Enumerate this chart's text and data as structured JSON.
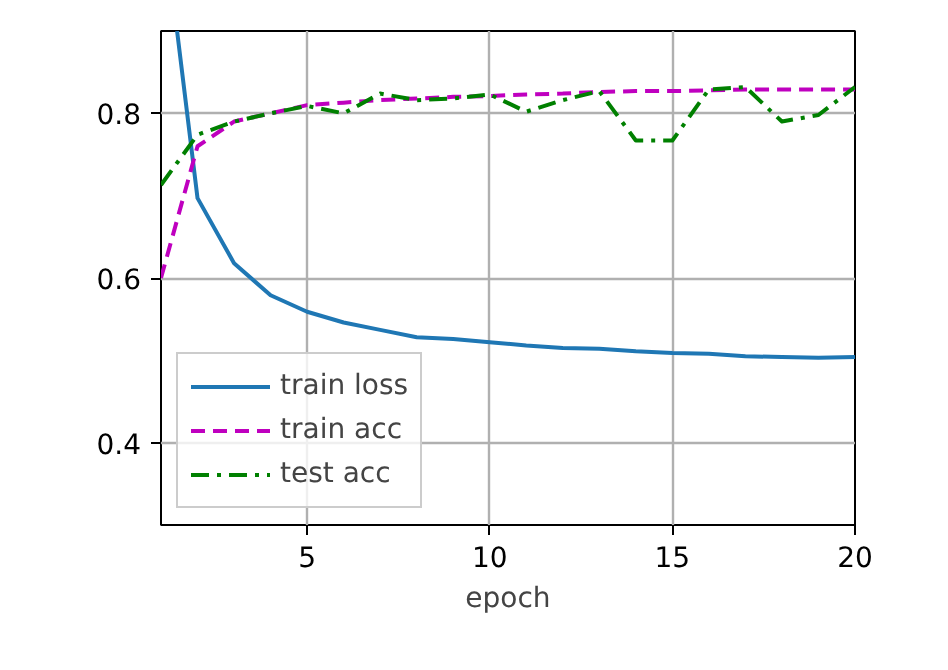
{
  "chart_data": {
    "type": "line",
    "xlabel": "epoch",
    "xlim": [
      1,
      20
    ],
    "ylim": [
      0.3,
      0.9
    ],
    "xticks": [
      5,
      10,
      15,
      20
    ],
    "yticks": [
      0.4,
      0.6,
      0.8
    ],
    "grid": true,
    "legend": "bottom left",
    "series": [
      {
        "name": "train loss",
        "color": "#1f77b4",
        "line_style": "solid",
        "x": [
          1.44,
          2,
          3,
          4,
          5,
          6,
          7,
          8,
          9,
          10,
          11,
          12,
          13,
          14,
          15,
          16,
          17,
          18,
          19,
          20
        ],
        "values": [
          0.9,
          0.697,
          0.618,
          0.579,
          0.559,
          0.546,
          0.537,
          0.528,
          0.526,
          0.522,
          0.518,
          0.515,
          0.514,
          0.511,
          0.509,
          0.508,
          0.505,
          0.504,
          0.503,
          0.504
        ]
      },
      {
        "name": "train acc",
        "color": "#bf00bf",
        "line_style": "dashed",
        "x": [
          1,
          2,
          3,
          4,
          5,
          6,
          7,
          8,
          9,
          10,
          11,
          12,
          13,
          14,
          15,
          16,
          17,
          18,
          19,
          20
        ],
        "values": [
          0.6,
          0.76,
          0.79,
          0.8,
          0.81,
          0.813,
          0.816,
          0.818,
          0.82,
          0.821,
          0.823,
          0.824,
          0.826,
          0.827,
          0.827,
          0.828,
          0.829,
          0.829,
          0.829,
          0.829
        ]
      },
      {
        "name": "test acc",
        "color": "#008000",
        "line_style": "dashdot",
        "x": [
          1,
          2,
          3,
          4,
          5,
          6,
          7,
          8,
          9,
          10,
          11,
          12,
          13,
          14,
          15,
          16,
          17,
          18,
          19,
          20
        ],
        "values": [
          0.713,
          0.774,
          0.79,
          0.8,
          0.809,
          0.8,
          0.824,
          0.816,
          0.818,
          0.823,
          0.802,
          0.816,
          0.827,
          0.767,
          0.767,
          0.829,
          0.832,
          0.79,
          0.798,
          0.832
        ]
      }
    ]
  }
}
